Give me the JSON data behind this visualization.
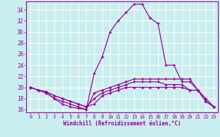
{
  "xlabel": "Windchill (Refroidissement éolien,°C)",
  "background_color": "#c8eef0",
  "grid_color": "#ffffff",
  "line_color": "#990099",
  "xlim": [
    -0.5,
    23.5
  ],
  "ylim": [
    15.5,
    35.5
  ],
  "yticks": [
    16,
    18,
    20,
    22,
    24,
    26,
    28,
    30,
    32,
    34
  ],
  "xticks": [
    0,
    1,
    2,
    3,
    4,
    5,
    6,
    7,
    8,
    9,
    10,
    11,
    12,
    13,
    14,
    15,
    16,
    17,
    18,
    19,
    20,
    21,
    22,
    23
  ],
  "series": [
    [
      20.0,
      19.5,
      19.0,
      18.0,
      17.0,
      16.5,
      16.2,
      16.0,
      22.5,
      25.5,
      30.0,
      32.0,
      33.5,
      35.0,
      35.0,
      32.5,
      31.5,
      24.0,
      24.0,
      21.0,
      21.0,
      19.5,
      17.5,
      16.5
    ],
    [
      20.0,
      19.5,
      19.0,
      18.0,
      17.5,
      17.0,
      16.5,
      16.0,
      19.0,
      19.5,
      20.0,
      20.5,
      21.0,
      21.5,
      21.5,
      21.5,
      21.5,
      21.5,
      21.5,
      21.5,
      21.5,
      19.5,
      17.5,
      16.5
    ],
    [
      20.0,
      19.5,
      19.2,
      18.5,
      18.0,
      17.5,
      17.0,
      16.5,
      18.0,
      19.0,
      19.5,
      20.0,
      20.5,
      21.0,
      21.0,
      21.0,
      21.0,
      20.5,
      20.5,
      20.5,
      19.5,
      19.5,
      18.0,
      16.5
    ],
    [
      20.0,
      19.5,
      19.2,
      18.5,
      18.0,
      17.5,
      17.0,
      16.5,
      17.0,
      18.5,
      19.0,
      19.5,
      20.0,
      20.0,
      20.0,
      20.0,
      20.0,
      20.0,
      20.0,
      20.0,
      19.5,
      19.5,
      17.5,
      16.5
    ]
  ]
}
